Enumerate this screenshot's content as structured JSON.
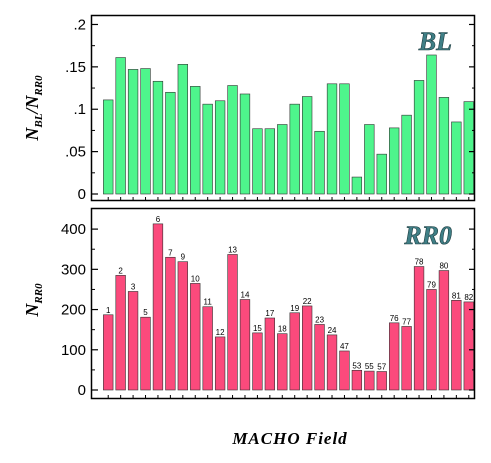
{
  "figure": {
    "xlabel": "MACHO Field",
    "colors": {
      "top_bar": "#4ef58c",
      "bottom_bar": "#fb4a7c",
      "tag_fill": "#3f7f86",
      "bar_edge": "#333333"
    }
  },
  "chart_data": [
    {
      "type": "bar",
      "panel_tag": "BL",
      "ylabel_main": "N",
      "ylabel_sub1": "BL",
      "ylabel_slash": "/N",
      "ylabel_sub2": "RR0",
      "ylim": [
        0,
        0.21
      ],
      "yticks": [
        0,
        0.05,
        0.1,
        0.15,
        0.2
      ],
      "ytick_labels": [
        "0",
        ".05",
        ".1",
        ".15",
        ".2"
      ],
      "values": [
        0.111,
        0.161,
        0.147,
        0.148,
        0.133,
        0.12,
        0.153,
        0.127,
        0.106,
        0.11,
        0.128,
        0.118,
        0.077,
        0.077,
        0.082,
        0.106,
        0.115,
        0.074,
        0.13,
        0.13,
        0.02,
        0.082,
        0.047,
        0.078,
        0.093,
        0.134,
        0.164,
        0.114,
        0.085,
        0.109
      ]
    },
    {
      "type": "bar",
      "panel_tag": "RR0",
      "ylabel_main": "N",
      "ylabel_sub": "RR0",
      "ylim": [
        0,
        450
      ],
      "yticks": [
        0,
        100,
        200,
        300,
        400
      ],
      "ytick_labels": [
        "0",
        "100",
        "200",
        "300",
        "400"
      ],
      "categories": [
        "1",
        "2",
        "3",
        "5",
        "6",
        "7",
        "9",
        "10",
        "11",
        "12",
        "13",
        "14",
        "15",
        "17",
        "18",
        "19",
        "22",
        "23",
        "24",
        "47",
        "53",
        "55",
        "57",
        "76",
        "77",
        "78",
        "79",
        "80",
        "81",
        "82"
      ],
      "values": [
        187,
        285,
        245,
        181,
        413,
        330,
        319,
        265,
        207,
        132,
        337,
        225,
        142,
        179,
        140,
        192,
        209,
        163,
        137,
        97,
        49,
        47,
        46,
        167,
        158,
        307,
        250,
        297,
        223,
        219
      ]
    }
  ]
}
